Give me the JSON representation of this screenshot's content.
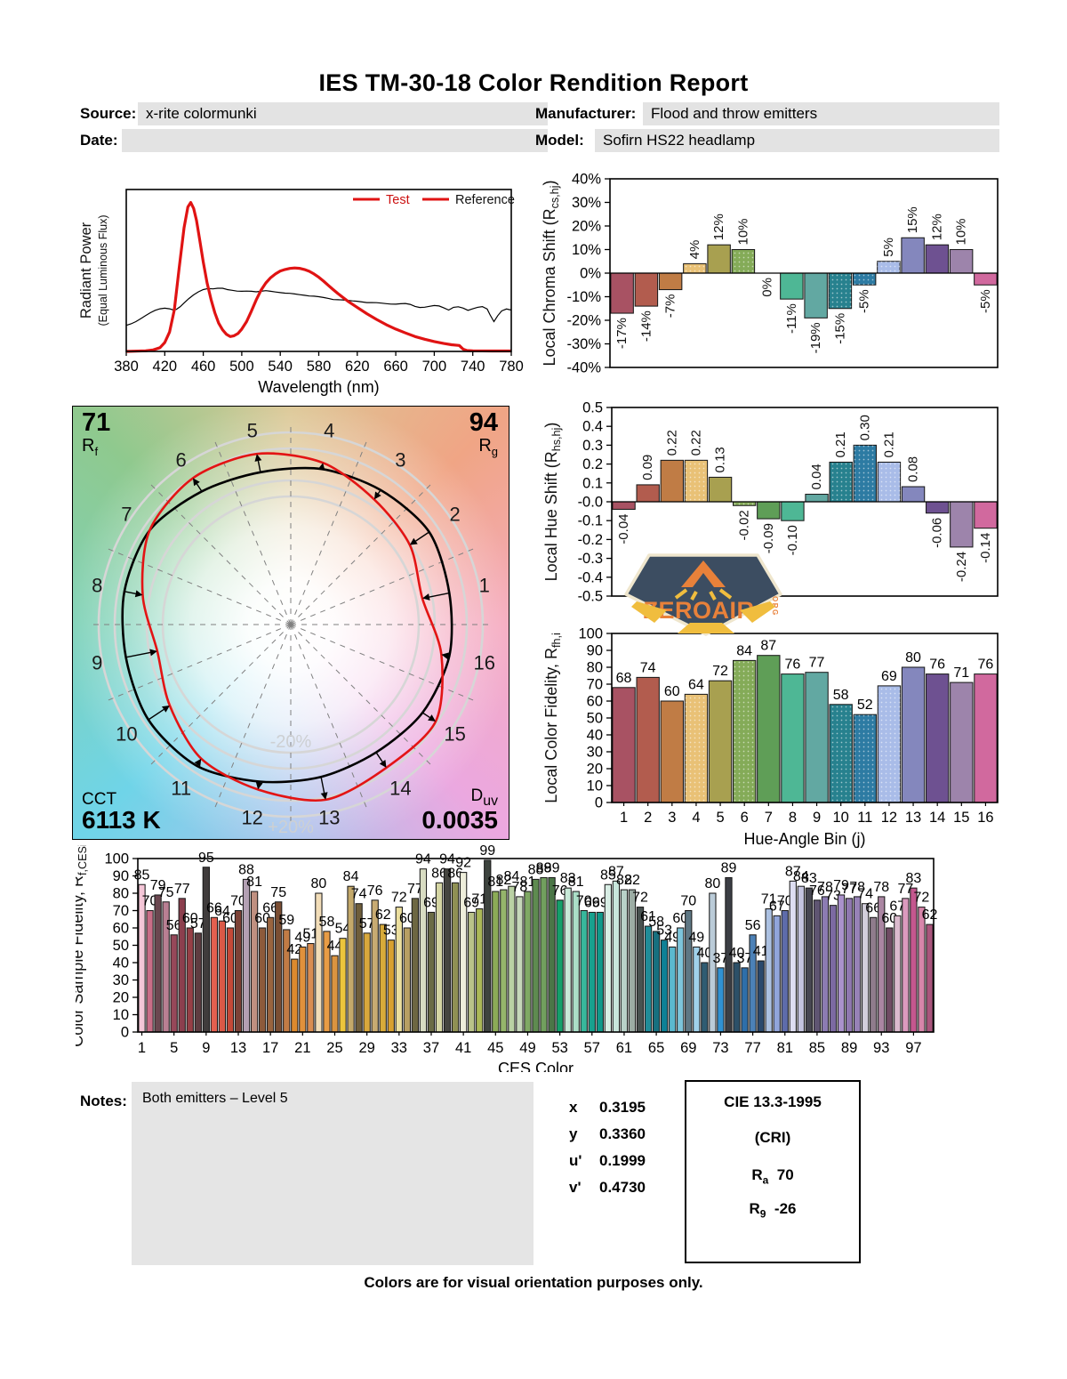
{
  "title": "IES TM-30-18 Color Rendition Report",
  "meta": {
    "source": {
      "label": "Source:",
      "value": "x-rite colormunki"
    },
    "manufacturer": {
      "label": "Manufacturer:",
      "value": "Flood and throw emitters"
    },
    "date": {
      "label": "Date:",
      "value": ""
    },
    "model": {
      "label": "Model:",
      "value": "Sofirn HS22 headlamp"
    }
  },
  "spd": {
    "ylabel_line1": "Radiant Power",
    "ylabel_line2": "(Equal Luminous Flux)",
    "xlabel": "Wavelength (nm)",
    "xlim": [
      380,
      780
    ],
    "xtick_step": 40,
    "legend": [
      {
        "label": "Test",
        "line_color": "#e01313",
        "text_color": "#cc1111"
      },
      {
        "label": "Reference",
        "line_color": "#e01313",
        "text_color": "#111111"
      }
    ],
    "test_color": "#e01313",
    "reference_color": "#000000",
    "test": [
      [
        380,
        0
      ],
      [
        400,
        0.004
      ],
      [
        408,
        0.01
      ],
      [
        415,
        0.025
      ],
      [
        420,
        0.06
      ],
      [
        425,
        0.13
      ],
      [
        430,
        0.28
      ],
      [
        435,
        0.56
      ],
      [
        440,
        0.83
      ],
      [
        444,
        0.97
      ],
      [
        447,
        1.0
      ],
      [
        450,
        0.96
      ],
      [
        453,
        0.88
      ],
      [
        456,
        0.76
      ],
      [
        460,
        0.6
      ],
      [
        464,
        0.46
      ],
      [
        468,
        0.35
      ],
      [
        472,
        0.26
      ],
      [
        476,
        0.19
      ],
      [
        480,
        0.145
      ],
      [
        484,
        0.115
      ],
      [
        488,
        0.1
      ],
      [
        492,
        0.105
      ],
      [
        496,
        0.12
      ],
      [
        500,
        0.15
      ],
      [
        505,
        0.2
      ],
      [
        510,
        0.27
      ],
      [
        515,
        0.345
      ],
      [
        520,
        0.41
      ],
      [
        525,
        0.46
      ],
      [
        530,
        0.495
      ],
      [
        535,
        0.52
      ],
      [
        540,
        0.54
      ],
      [
        545,
        0.55
      ],
      [
        550,
        0.557
      ],
      [
        555,
        0.56
      ],
      [
        560,
        0.558
      ],
      [
        565,
        0.55
      ],
      [
        570,
        0.538
      ],
      [
        575,
        0.52
      ],
      [
        580,
        0.498
      ],
      [
        585,
        0.472
      ],
      [
        590,
        0.443
      ],
      [
        595,
        0.415
      ],
      [
        600,
        0.388
      ],
      [
        610,
        0.338
      ],
      [
        620,
        0.295
      ],
      [
        630,
        0.253
      ],
      [
        640,
        0.215
      ],
      [
        650,
        0.18
      ],
      [
        660,
        0.15
      ],
      [
        670,
        0.124
      ],
      [
        680,
        0.1
      ],
      [
        690,
        0.082
      ],
      [
        700,
        0.066
      ],
      [
        710,
        0.053
      ],
      [
        718,
        0.045
      ],
      [
        726,
        0.04
      ],
      [
        730,
        0.015
      ],
      [
        734,
        0.006
      ],
      [
        740,
        0.004
      ],
      [
        760,
        0.003
      ],
      [
        780,
        0.003
      ]
    ],
    "reference": [
      [
        380,
        0.175
      ],
      [
        385,
        0.185
      ],
      [
        390,
        0.2
      ],
      [
        395,
        0.22
      ],
      [
        400,
        0.24
      ],
      [
        405,
        0.26
      ],
      [
        410,
        0.276
      ],
      [
        415,
        0.286
      ],
      [
        420,
        0.29
      ],
      [
        425,
        0.286
      ],
      [
        428,
        0.28
      ],
      [
        432,
        0.282
      ],
      [
        436,
        0.3
      ],
      [
        440,
        0.325
      ],
      [
        445,
        0.355
      ],
      [
        450,
        0.38
      ],
      [
        455,
        0.4
      ],
      [
        460,
        0.415
      ],
      [
        465,
        0.422
      ],
      [
        470,
        0.42
      ],
      [
        475,
        0.424
      ],
      [
        480,
        0.424
      ],
      [
        485,
        0.415
      ],
      [
        490,
        0.41
      ],
      [
        495,
        0.405
      ],
      [
        500,
        0.404
      ],
      [
        505,
        0.405
      ],
      [
        510,
        0.404
      ],
      [
        515,
        0.4
      ],
      [
        520,
        0.404
      ],
      [
        525,
        0.408
      ],
      [
        530,
        0.404
      ],
      [
        535,
        0.399
      ],
      [
        540,
        0.395
      ],
      [
        545,
        0.391
      ],
      [
        550,
        0.39
      ],
      [
        555,
        0.386
      ],
      [
        560,
        0.381
      ],
      [
        565,
        0.377
      ],
      [
        570,
        0.372
      ],
      [
        575,
        0.371
      ],
      [
        580,
        0.367
      ],
      [
        585,
        0.362
      ],
      [
        590,
        0.356
      ],
      [
        595,
        0.348
      ],
      [
        600,
        0.347
      ],
      [
        605,
        0.346
      ],
      [
        610,
        0.343
      ],
      [
        615,
        0.339
      ],
      [
        620,
        0.337
      ],
      [
        625,
        0.332
      ],
      [
        630,
        0.328
      ],
      [
        635,
        0.328
      ],
      [
        640,
        0.327
      ],
      [
        645,
        0.324
      ],
      [
        650,
        0.321
      ],
      [
        655,
        0.318
      ],
      [
        660,
        0.317
      ],
      [
        665,
        0.32
      ],
      [
        670,
        0.322
      ],
      [
        675,
        0.316
      ],
      [
        680,
        0.302
      ],
      [
        685,
        0.295
      ],
      [
        690,
        0.297
      ],
      [
        695,
        0.303
      ],
      [
        700,
        0.308
      ],
      [
        705,
        0.305
      ],
      [
        710,
        0.292
      ],
      [
        715,
        0.278
      ],
      [
        720,
        0.296
      ],
      [
        725,
        0.3
      ],
      [
        730,
        0.291
      ],
      [
        735,
        0.276
      ],
      [
        740,
        0.286
      ],
      [
        745,
        0.296
      ],
      [
        750,
        0.301
      ],
      [
        755,
        0.285
      ],
      [
        758,
        0.245
      ],
      [
        762,
        0.2
      ],
      [
        766,
        0.24
      ],
      [
        770,
        0.272
      ],
      [
        775,
        0.285
      ],
      [
        780,
        0.278
      ]
    ]
  },
  "cvg": {
    "rf": {
      "value": "71",
      "sym": "R",
      "sub": "f"
    },
    "rg": {
      "value": "94",
      "sym": "R",
      "sub": "g"
    },
    "cct": {
      "label": "CCT",
      "value": "6113 K"
    },
    "duv": {
      "sym": "D",
      "sub": "uv",
      "value": "0.0035"
    },
    "minus_ring_label": "-20%",
    "plus_ring_label": "+20%",
    "bins": [
      1,
      2,
      3,
      4,
      5,
      6,
      7,
      8,
      9,
      10,
      11,
      12,
      13,
      14,
      15,
      16
    ],
    "ref_radii": [
      1.01,
      1.04,
      1.01,
      0.99,
      0.97,
      1.0,
      1.06,
      1.06,
      1.05,
      1.07,
      1.06,
      1.0,
      0.97,
      0.96,
      0.99,
      1.01
    ],
    "test_color": "#e31414",
    "reference_color": "#000000"
  },
  "hue_bins": {
    "colors": [
      "#a85263",
      "#b25c4e",
      "#c07c45",
      "#e9c176",
      "#a8a050",
      "#84ab58",
      "#5f9e57",
      "#4eb795",
      "#62a8a2",
      "#27818e",
      "#2d7ba3",
      "#a9bce8",
      "#8487bd",
      "#6e5191",
      "#9d84ab",
      "#d1699e"
    ],
    "dotted": [
      4,
      6,
      10,
      11,
      12
    ]
  },
  "chart_data": {
    "chroma_shift": {
      "type": "bar",
      "ylabel": {
        "pre": "Local Chroma Shift (R",
        "sub": "cs,hj",
        "post": ")"
      },
      "ylim": [
        -40,
        40
      ],
      "ytick_step": 10,
      "ytick_suffix": "%",
      "label_fmt": "pct",
      "values": [
        -17,
        -14,
        -7,
        4,
        12,
        10,
        0,
        -11,
        -19,
        -15,
        -5,
        5,
        15,
        12,
        10,
        -5
      ]
    },
    "hue_shift": {
      "type": "bar",
      "ylabel": {
        "pre": "Local Hue Shift (R",
        "sub": "hs,hj",
        "post": ")"
      },
      "ylim": [
        -0.5,
        0.5
      ],
      "ytick_step": 0.1,
      "ytick_suffix": "",
      "label_fmt": "dec2",
      "values": [
        -0.04,
        0.09,
        0.22,
        0.22,
        0.13,
        -0.02,
        -0.09,
        -0.1,
        0.04,
        0.21,
        0.3,
        0.21,
        0.08,
        -0.06,
        -0.24,
        -0.14
      ]
    },
    "local_fidelity": {
      "type": "bar",
      "ylabel": {
        "pre": "Local Color Fidelity, R",
        "sub": "fh,i",
        "post": ""
      },
      "xlabel": "Hue-Angle Bin (j)",
      "ylim": [
        0,
        100
      ],
      "ytick_step": 10,
      "label_fmt": "int",
      "categories": [
        1,
        2,
        3,
        4,
        5,
        6,
        7,
        8,
        9,
        10,
        11,
        12,
        13,
        14,
        15,
        16
      ],
      "values": [
        68,
        74,
        60,
        64,
        72,
        84,
        87,
        76,
        77,
        58,
        52,
        69,
        80,
        76,
        71,
        76
      ]
    },
    "ces_fidelity": {
      "type": "bar",
      "ylabel": {
        "pre": "Color Sample Fidelity, R",
        "sub": "f,CESi",
        "post": ""
      },
      "xlabel": "CES Color",
      "ylim": [
        0,
        100
      ],
      "ytick_step": 10,
      "xticks": [
        1,
        5,
        9,
        13,
        17,
        21,
        25,
        29,
        33,
        37,
        41,
        45,
        49,
        53,
        57,
        61,
        65,
        69,
        73,
        77,
        81,
        85,
        89,
        93,
        97
      ],
      "values": [
        85,
        70,
        79,
        75,
        56,
        77,
        60,
        57,
        95,
        66,
        64,
        60,
        70,
        88,
        81,
        60,
        66,
        75,
        59,
        42,
        49,
        51,
        80,
        58,
        44,
        54,
        84,
        74,
        57,
        76,
        62,
        53,
        72,
        60,
        77,
        94,
        69,
        86,
        94,
        86,
        92,
        69,
        71,
        99,
        81,
        82,
        84,
        78,
        81,
        88,
        89,
        89,
        76,
        83,
        81,
        70,
        69,
        69,
        85,
        87,
        82,
        82,
        72,
        61,
        58,
        53,
        49,
        60,
        70,
        49,
        40,
        80,
        37,
        89,
        40,
        37,
        56,
        41,
        71,
        67,
        70,
        87,
        84,
        83,
        76,
        78,
        73,
        79,
        77,
        78,
        74,
        66,
        78,
        60,
        67,
        77,
        83,
        72,
        62
      ],
      "colors": [
        "#f4c6d7",
        "#c96d87",
        "#6b4750",
        "#b97f93",
        "#97485a",
        "#8c3f4e",
        "#963f46",
        "#5e3c40",
        "#403c3c",
        "#e4604f",
        "#da5947",
        "#c44938",
        "#7c4136",
        "#b3a0b3",
        "#c09080",
        "#8d5a3b",
        "#99643f",
        "#7b4e33",
        "#c17b45",
        "#dc8a2e",
        "#e0913c",
        "#d98d52",
        "#f2ddb8",
        "#e89c45",
        "#db9440",
        "#ecc53c",
        "#c4a96a",
        "#6f5e3b",
        "#d8a83c",
        "#c8ab72",
        "#d8ab3a",
        "#d8a030",
        "#ecdf9e",
        "#b89f63",
        "#6d6742",
        "#d8dcc2",
        "#6a6b46",
        "#d5d6a4",
        "#454540",
        "#8f9054",
        "#eeeedb",
        "#b9c289",
        "#abb858",
        "#3e443f",
        "#8cab57",
        "#95b56b",
        "#bad1a4",
        "#c6d7ba",
        "#7fa964",
        "#5e8b50",
        "#719f5e",
        "#4b7647",
        "#14a06a",
        "#c8e9d8",
        "#abdfc8",
        "#38b79c",
        "#18a18e",
        "#10988a",
        "#d8eee5",
        "#c8e6dc",
        "#b8d1c8",
        "#9cada4",
        "#485250",
        "#208c98",
        "#17707f",
        "#0f8196",
        "#5bb8ce",
        "#7dc5db",
        "#5e7784",
        "#a0d1ea",
        "#2f5c72",
        "#bacbd8",
        "#3091d2",
        "#3b3e44",
        "#2c5068",
        "#2f6faa",
        "#4c81b7",
        "#2a496d",
        "#acc1e2",
        "#91a5db",
        "#5e6caa",
        "#dedef2",
        "#c5c5df",
        "#474751",
        "#5f5572",
        "#8c7cb2",
        "#7c6aa2",
        "#aa92cb",
        "#8f78af",
        "#9782b7",
        "#d2cedb",
        "#8f7c8c",
        "#aa86a2",
        "#704c64",
        "#dbbace",
        "#db9abe",
        "#c4578e",
        "#d785aa",
        "#aa557c"
      ]
    }
  },
  "badge": {
    "text": "ZEROAIR",
    "org": "ORG"
  },
  "notes": {
    "label": "Notes:",
    "text": "Both emitters – Level 5"
  },
  "chromaticity": {
    "rows": [
      {
        "label": "x",
        "value": "0.3195"
      },
      {
        "label": "y",
        "value": "0.3360"
      },
      {
        "label": "u'",
        "value": "0.1999"
      },
      {
        "label": "v'",
        "value": "0.4730"
      }
    ]
  },
  "cri": {
    "title": "CIE 13.3-1995",
    "subtitle": "(CRI)",
    "rows": [
      {
        "sym": "R",
        "sub": "a",
        "value": "70"
      },
      {
        "sym": "R",
        "sub": "9",
        "value": "-26"
      }
    ]
  },
  "footer": "Colors are for visual orientation purposes only."
}
